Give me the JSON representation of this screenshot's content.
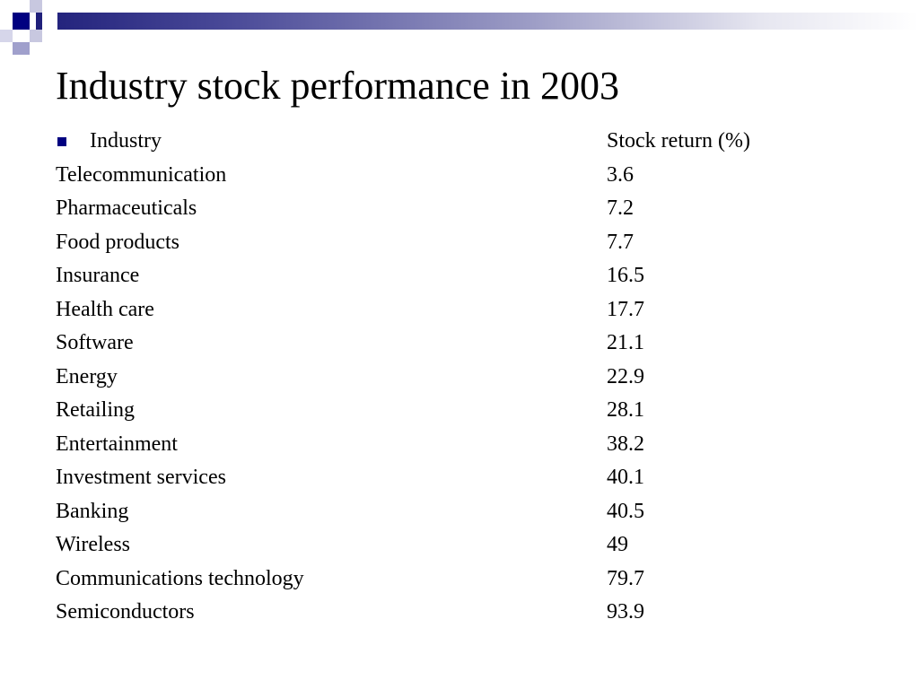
{
  "slide": {
    "title": "Industry stock performance in 2003",
    "header": {
      "industry_label": "Industry",
      "return_label": "Stock return (%)"
    },
    "rows": [
      {
        "industry": "Telecommunication",
        "return": "3.6"
      },
      {
        "industry": "Pharmaceuticals",
        "return": "7.2"
      },
      {
        "industry": "Food products",
        "return": "7.7"
      },
      {
        "industry": "Insurance",
        "return": "16.5"
      },
      {
        "industry": "Health care",
        "return": "17.7"
      },
      {
        "industry": "Software",
        "return": "21.1"
      },
      {
        "industry": "Energy",
        "return": "22.9"
      },
      {
        "industry": "Retailing",
        "return": "28.1"
      },
      {
        "industry": "Entertainment",
        "return": "38.2"
      },
      {
        "industry": "Investment services",
        "return": "40.1"
      },
      {
        "industry": "Banking",
        "return": "40.5"
      },
      {
        "industry": "Wireless",
        "return": "49"
      },
      {
        "industry": "Communications technology",
        "return": "79.7"
      },
      {
        "industry": "Semiconductors",
        "return": "93.9"
      }
    ]
  },
  "colors": {
    "accent": "#000080",
    "text": "#000000",
    "background": "#ffffff"
  }
}
